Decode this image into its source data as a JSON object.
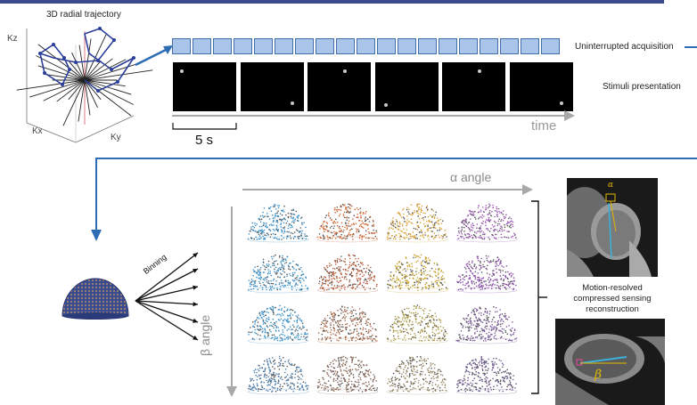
{
  "labels": {
    "trajectory_title": "3D radial trajectory",
    "kz": "Kz",
    "kx": "Kx",
    "ky": "Ky",
    "acquisition": "Uninterrupted acquisition",
    "stimuli": "Stimuli presentation",
    "time": "time",
    "five_s": "5 s",
    "binning": "Binning",
    "alpha": "α angle",
    "beta": "β angle",
    "recon_line1": "Motion-resolved",
    "recon_line2": "compressed sensing",
    "recon_line3": "reconstruction",
    "alpha_symbol": "α",
    "beta_symbol": "β"
  },
  "colors": {
    "top_bar": "#3b4a8c",
    "arrow_blue": "#2e6db4",
    "acq_fill": "#a9c6ea",
    "grey_arrow": "#9a9a9a",
    "hemi_row1": [
      "#3a8fc7",
      "#d06a3a",
      "#d9a640",
      "#9a5cb0"
    ],
    "hemi_row2": [
      "#3a8fc7",
      "#b85a3a",
      "#c9a530",
      "#8a4ca8"
    ],
    "hemi_row3": [
      "#3a8fc7",
      "#a86a4a",
      "#b0a050",
      "#7a5a98"
    ],
    "hemi_row4": [
      "#4a7aa8",
      "#8a6a5a",
      "#9a8a6a",
      "#6a5a8a"
    ]
  },
  "stimuli_frames": [
    {
      "dot": "upper-left"
    },
    {
      "dot": "lower-right"
    },
    {
      "dot": "upper-center"
    },
    {
      "dot": "lower-left"
    },
    {
      "dot": "upper-center"
    },
    {
      "dot": "lower-right"
    }
  ],
  "acquisition_blocks": 19
}
